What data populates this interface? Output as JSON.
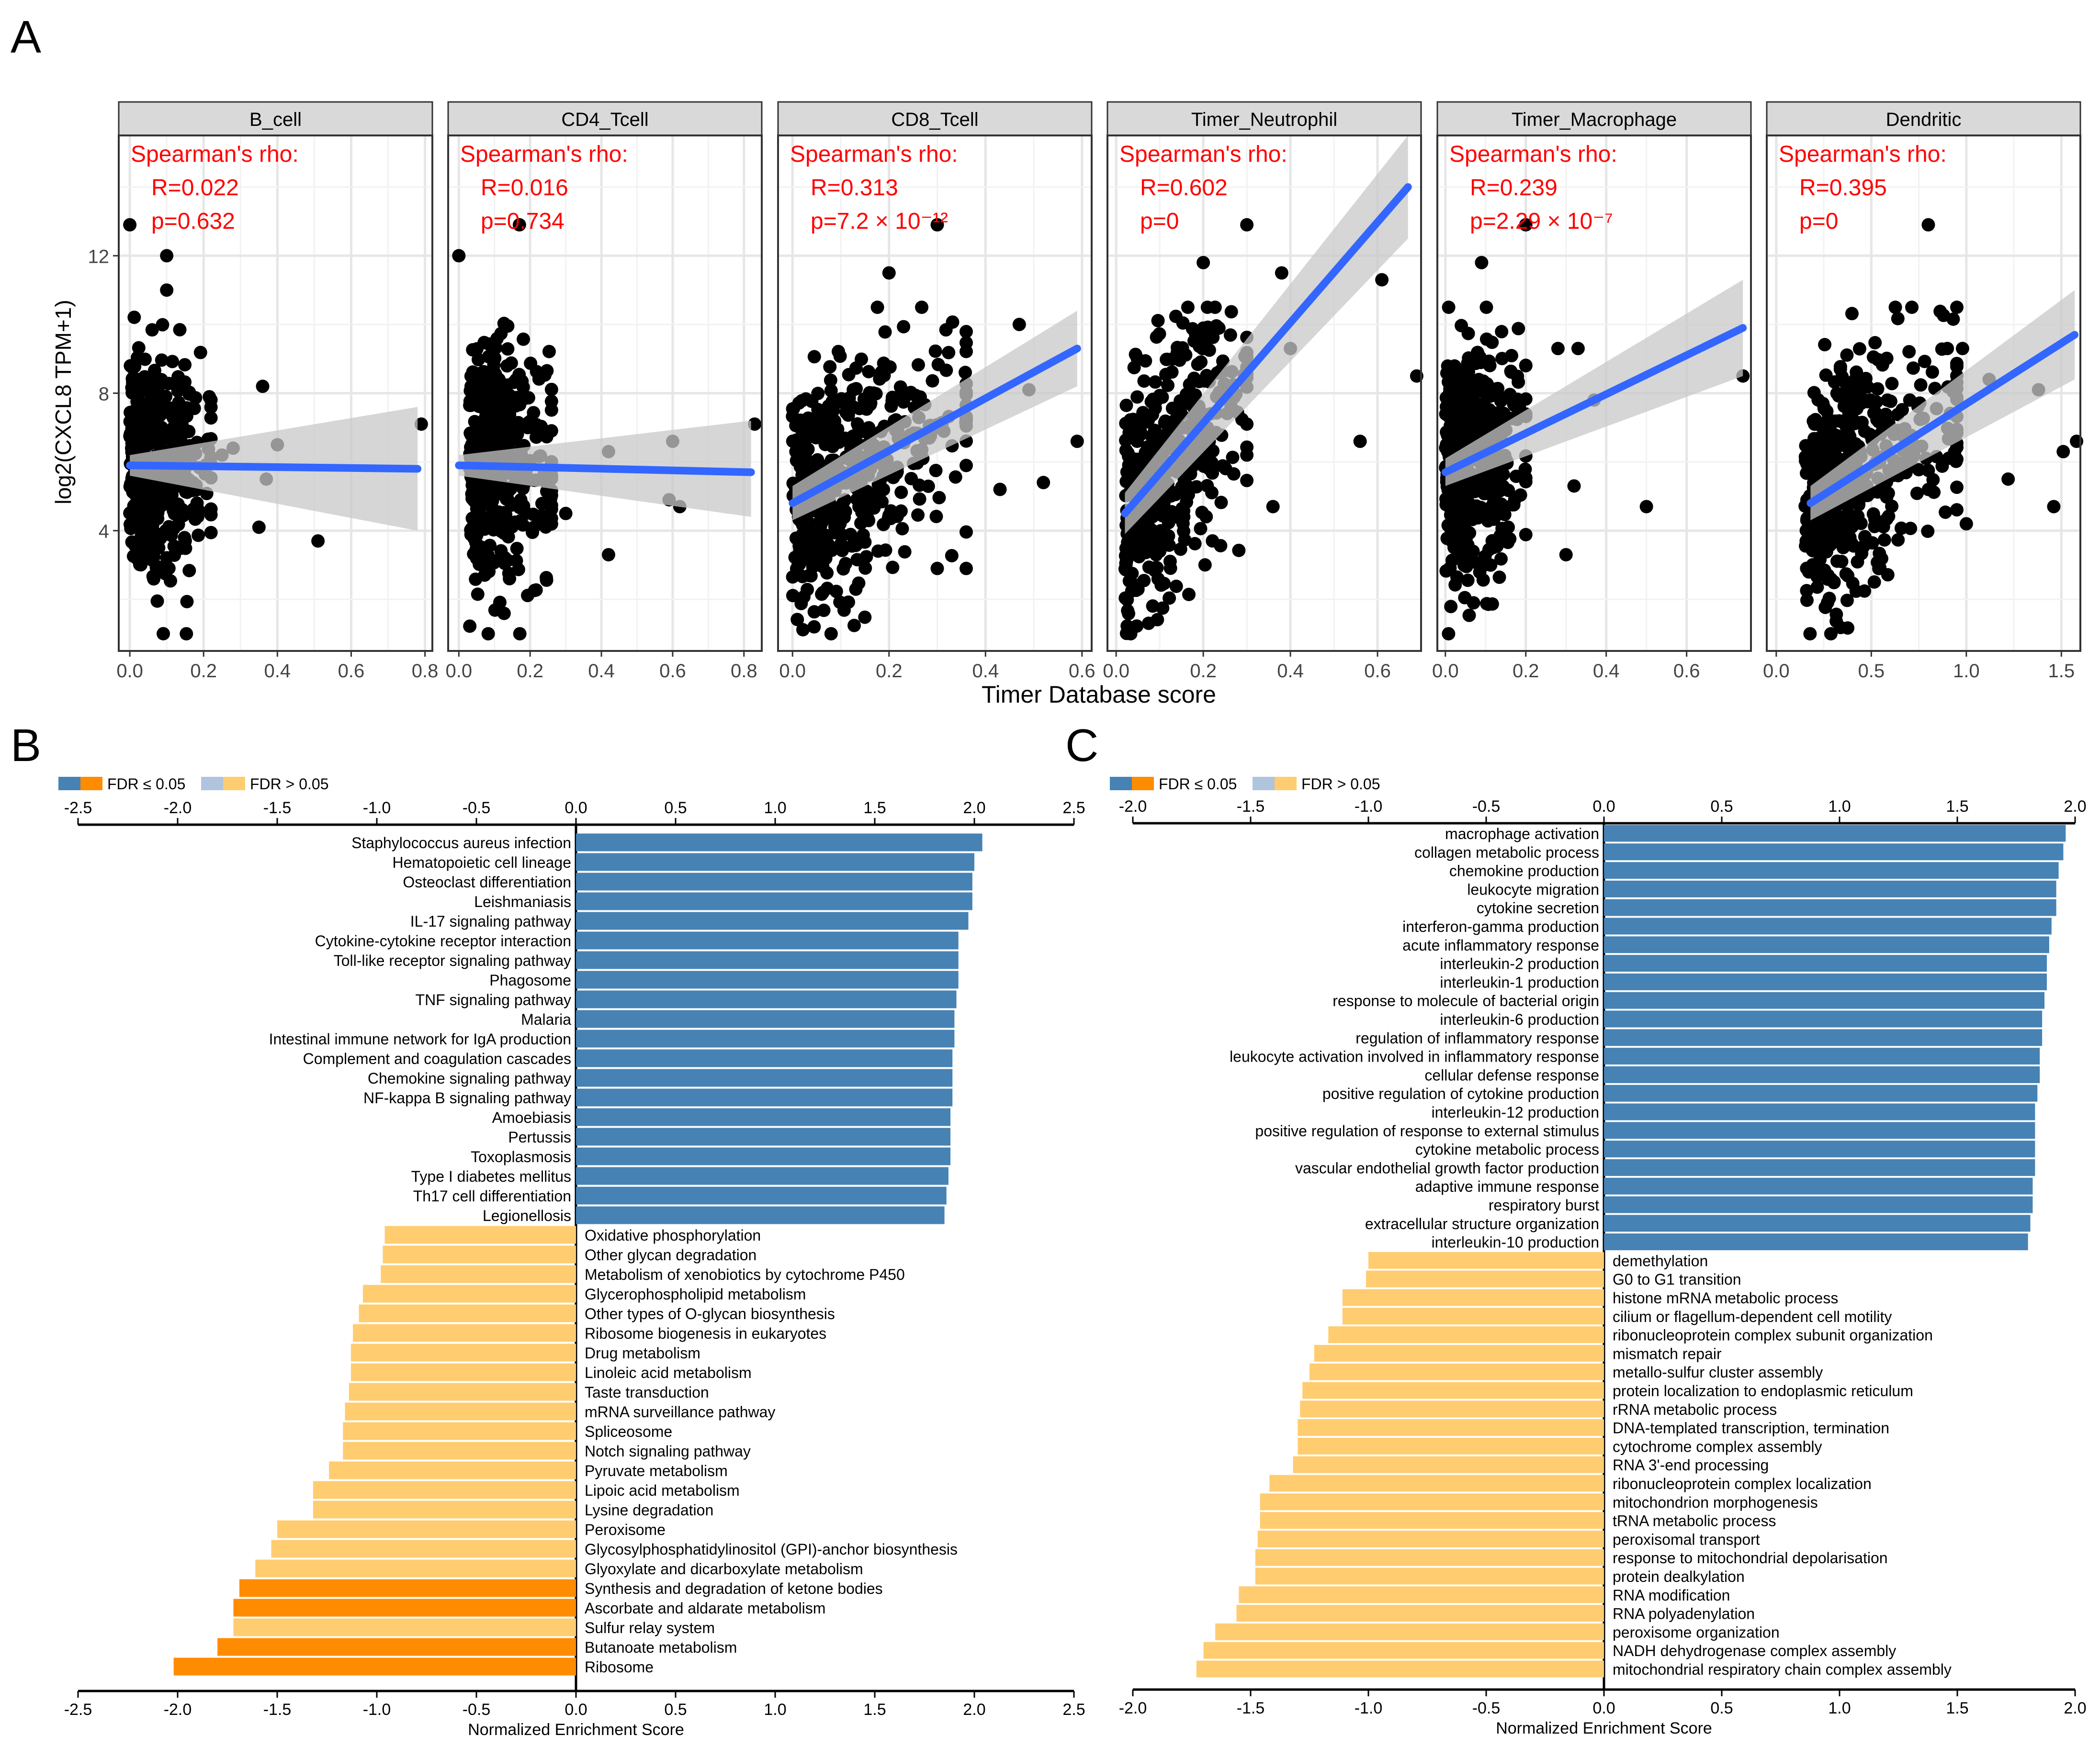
{
  "panel_labels": {
    "A": "A",
    "B": "B",
    "C": "C"
  },
  "colors": {
    "positive": "#4682b4",
    "negative_sig": "#ff8c00",
    "negative_nonsig": "#ffcc70",
    "positive_nonsig": "#b0c4de",
    "fit_line": "#3366ff",
    "ci_band": "#c8c8c8",
    "stat_text": "#ff0000",
    "strip": "#d9d9d9"
  },
  "panel_A": {
    "ylabel": "log2(CXCL8 TPM+1)",
    "xlabel": "Timer Database score",
    "stat_title": "Spearman's rho:",
    "yticks": [
      4,
      8,
      12
    ],
    "ylim": [
      0.5,
      15.5
    ]
  },
  "legend": {
    "sig": "FDR ≤ 0.05",
    "nonsig": "FDR > 0.05"
  },
  "chart_data": [
    {
      "type": "scatter",
      "title": "B_cell",
      "R": "R=0.022",
      "p": "p=0.632",
      "xlim": [
        -0.03,
        0.82
      ],
      "xticks": [
        "0.0",
        "0.2",
        "0.4",
        "0.6",
        "0.8"
      ],
      "xtick_values": [
        0.0,
        0.2,
        0.4,
        0.6,
        0.8
      ],
      "fit": {
        "x": [
          0.0,
          0.78
        ],
        "y": [
          5.9,
          5.8
        ]
      },
      "ci": {
        "x": [
          0.0,
          0.78
        ],
        "lower": [
          5.6,
          4.0
        ],
        "upper": [
          6.2,
          7.6
        ]
      },
      "cloud": {
        "xmin": 0.0,
        "xmax": 0.22,
        "ymin": 1.0,
        "ymax": 11.5,
        "n": 420
      },
      "outliers": [
        [
          0.0,
          12.9
        ],
        [
          0.1,
          12.0
        ],
        [
          0.1,
          11.0
        ],
        [
          0.36,
          8.2
        ],
        [
          0.4,
          6.5
        ],
        [
          0.28,
          6.4
        ],
        [
          0.37,
          5.5
        ],
        [
          0.35,
          4.1
        ],
        [
          0.51,
          3.7
        ],
        [
          0.79,
          7.1
        ],
        [
          0.25,
          6.2
        ]
      ]
    },
    {
      "type": "scatter",
      "title": "CD4_Tcell",
      "R": "R=0.016",
      "p": "p=0.734",
      "xlim": [
        -0.03,
        0.85
      ],
      "xticks": [
        "0.0",
        "0.2",
        "0.4",
        "0.6",
        "0.8"
      ],
      "xtick_values": [
        0.0,
        0.2,
        0.4,
        0.6,
        0.8
      ],
      "fit": {
        "x": [
          0.0,
          0.82
        ],
        "y": [
          5.9,
          5.7
        ]
      },
      "ci": {
        "x": [
          0.0,
          0.82
        ],
        "lower": [
          5.6,
          4.4
        ],
        "upper": [
          6.2,
          7.2
        ]
      },
      "cloud": {
        "xmin": 0.03,
        "xmax": 0.26,
        "ymin": 1.0,
        "ymax": 11.0,
        "n": 420
      },
      "outliers": [
        [
          0.0,
          12.0
        ],
        [
          0.17,
          12.9
        ],
        [
          0.42,
          6.3
        ],
        [
          0.42,
          3.3
        ],
        [
          0.6,
          6.6
        ],
        [
          0.59,
          4.9
        ],
        [
          0.62,
          4.7
        ],
        [
          0.83,
          7.1
        ],
        [
          0.3,
          4.5
        ]
      ]
    },
    {
      "type": "scatter",
      "title": "CD8_Tcell",
      "R": "R=0.313",
      "p": "p=7.2 × 10⁻¹²",
      "xlim": [
        -0.03,
        0.62
      ],
      "xticks": [
        "0.0",
        "0.2",
        "0.4",
        "0.6"
      ],
      "xtick_values": [
        0.0,
        0.2,
        0.4,
        0.6
      ],
      "fit": {
        "x": [
          0.0,
          0.59
        ],
        "y": [
          4.8,
          9.3
        ]
      },
      "ci": {
        "x": [
          0.0,
          0.59
        ],
        "lower": [
          4.3,
          8.2
        ],
        "upper": [
          5.3,
          10.4
        ]
      },
      "cloud": {
        "xmin": 0.0,
        "xmax": 0.36,
        "ymin": 1.0,
        "ymax": 10.5,
        "n": 460
      },
      "outliers": [
        [
          0.3,
          12.9
        ],
        [
          0.2,
          11.5
        ],
        [
          0.47,
          10.0
        ],
        [
          0.49,
          8.1
        ],
        [
          0.59,
          6.6
        ],
        [
          0.52,
          5.4
        ],
        [
          0.43,
          5.2
        ],
        [
          0.36,
          2.9
        ],
        [
          0.3,
          2.9
        ],
        [
          0.08,
          1.0
        ]
      ]
    },
    {
      "type": "scatter",
      "title": "Timer_Neutrophil",
      "R": "R=0.602",
      "p": "p=0",
      "xlim": [
        -0.02,
        0.7
      ],
      "xticks": [
        "0.0",
        "0.2",
        "0.4",
        "0.6"
      ],
      "xtick_values": [
        0.0,
        0.2,
        0.4,
        0.6
      ],
      "fit": {
        "x": [
          0.02,
          0.67
        ],
        "y": [
          4.5,
          14.0
        ]
      },
      "ci": {
        "x": [
          0.02,
          0.67
        ],
        "lower": [
          3.9,
          12.5
        ],
        "upper": [
          5.1,
          15.5
        ]
      },
      "cloud": {
        "xmin": 0.02,
        "xmax": 0.3,
        "ymin": 1.0,
        "ymax": 10.5,
        "n": 460
      },
      "outliers": [
        [
          0.3,
          12.9
        ],
        [
          0.2,
          11.8
        ],
        [
          0.38,
          11.5
        ],
        [
          0.61,
          11.3
        ],
        [
          0.69,
          8.5
        ],
        [
          0.4,
          9.3
        ],
        [
          0.56,
          6.6
        ],
        [
          0.36,
          4.7
        ],
        [
          0.3,
          6.2
        ]
      ]
    },
    {
      "type": "scatter",
      "title": "Timer_Macrophage",
      "R": "R=0.239",
      "p": "p=2.29 × 10⁻⁷",
      "xlim": [
        -0.02,
        0.76
      ],
      "xticks": [
        "0.0",
        "0.2",
        "0.4",
        "0.6"
      ],
      "xtick_values": [
        0.0,
        0.2,
        0.4,
        0.6
      ],
      "fit": {
        "x": [
          0.0,
          0.74
        ],
        "y": [
          5.7,
          9.9
        ]
      },
      "ci": {
        "x": [
          0.0,
          0.74
        ],
        "lower": [
          5.3,
          8.5
        ],
        "upper": [
          6.1,
          11.3
        ]
      },
      "cloud": {
        "xmin": 0.0,
        "xmax": 0.2,
        "ymin": 1.0,
        "ymax": 10.5,
        "n": 460
      },
      "outliers": [
        [
          0.2,
          12.9
        ],
        [
          0.09,
          11.8
        ],
        [
          0.28,
          9.3
        ],
        [
          0.33,
          9.3
        ],
        [
          0.37,
          7.8
        ],
        [
          0.5,
          4.7
        ],
        [
          0.74,
          8.5
        ],
        [
          0.3,
          3.3
        ],
        [
          0.32,
          5.3
        ]
      ]
    },
    {
      "type": "scatter",
      "title": "Dendritic",
      "R": "R=0.395",
      "p": "p=0",
      "xlim": [
        -0.05,
        1.6
      ],
      "xticks": [
        "0.0",
        "0.5",
        "1.0",
        "1.5"
      ],
      "xtick_values": [
        0.0,
        0.5,
        1.0,
        1.5
      ],
      "fit": {
        "x": [
          0.18,
          1.57
        ],
        "y": [
          4.8,
          9.7
        ]
      },
      "ci": {
        "x": [
          0.18,
          1.57
        ],
        "lower": [
          4.3,
          8.4
        ],
        "upper": [
          5.3,
          11.0
        ]
      },
      "cloud": {
        "xmin": 0.15,
        "xmax": 0.95,
        "ymin": 1.0,
        "ymax": 10.5,
        "n": 460
      },
      "outliers": [
        [
          0.8,
          12.9
        ],
        [
          0.9,
          9.3
        ],
        [
          0.98,
          9.3
        ],
        [
          1.12,
          8.4
        ],
        [
          1.38,
          8.1
        ],
        [
          1.58,
          6.6
        ],
        [
          1.51,
          6.3
        ],
        [
          1.22,
          5.5
        ],
        [
          1.46,
          4.7
        ],
        [
          1.0,
          4.2
        ]
      ]
    },
    {
      "type": "bar",
      "title": "",
      "xlabel": "Normalized Enrichment Score",
      "xlim": [
        -2.5,
        2.5
      ],
      "xticks": [
        "-2.5",
        "-2.0",
        "-1.5",
        "-1.0",
        "-0.5",
        "0.0",
        "0.5",
        "1.0",
        "1.5",
        "2.0",
        "2.5"
      ],
      "xtick_values": [
        -2.5,
        -2.0,
        -1.5,
        -1.0,
        -0.5,
        0.0,
        0.5,
        1.0,
        1.5,
        2.0,
        2.5
      ],
      "categories": [
        "Staphylococcus aureus infection",
        "Hematopoietic cell lineage",
        "Osteoclast differentiation",
        "Leishmaniasis",
        "IL-17 signaling pathway",
        "Cytokine-cytokine receptor interaction",
        "Toll-like receptor signaling pathway",
        "Phagosome",
        "TNF signaling pathway",
        "Malaria",
        "Intestinal immune network for IgA production",
        "Complement and coagulation cascades",
        "Chemokine signaling pathway",
        "NF-kappa B signaling pathway",
        "Amoebiasis",
        "Pertussis",
        "Toxoplasmosis",
        "Type I diabetes mellitus",
        "Th17 cell differentiation",
        "Legionellosis",
        "Oxidative phosphorylation",
        "Other glycan degradation",
        "Metabolism of xenobiotics by cytochrome P450",
        "Glycerophospholipid metabolism",
        "Other types of O-glycan biosynthesis",
        "Ribosome biogenesis in eukaryotes",
        "Drug metabolism",
        "Linoleic acid metabolism",
        "Taste transduction",
        "mRNA surveillance pathway",
        "Spliceosome",
        "Notch signaling pathway",
        "Pyruvate metabolism",
        "Lipoic acid metabolism",
        "Lysine degradation",
        "Peroxisome",
        "Glycosylphosphatidylinositol (GPI)-anchor biosynthesis",
        "Glyoxylate and dicarboxylate metabolism",
        "Synthesis and degradation of ketone bodies",
        "Ascorbate and aldarate metabolism",
        "Sulfur relay system",
        "Butanoate metabolism",
        "Ribosome"
      ],
      "values": [
        2.04,
        2.0,
        1.99,
        1.99,
        1.97,
        1.92,
        1.92,
        1.92,
        1.91,
        1.9,
        1.9,
        1.89,
        1.89,
        1.89,
        1.88,
        1.88,
        1.88,
        1.87,
        1.86,
        1.85,
        -0.96,
        -0.97,
        -0.98,
        -1.07,
        -1.09,
        -1.12,
        -1.13,
        -1.13,
        -1.14,
        -1.16,
        -1.17,
        -1.17,
        -1.24,
        -1.32,
        -1.32,
        -1.5,
        -1.53,
        -1.61,
        -1.69,
        -1.72,
        -1.72,
        -1.8,
        -2.02
      ],
      "significant": [
        true,
        true,
        true,
        true,
        true,
        true,
        true,
        true,
        true,
        true,
        true,
        true,
        true,
        true,
        true,
        true,
        true,
        true,
        true,
        true,
        false,
        false,
        false,
        false,
        false,
        false,
        false,
        false,
        false,
        false,
        false,
        false,
        false,
        false,
        false,
        false,
        false,
        false,
        true,
        true,
        false,
        true,
        true
      ]
    },
    {
      "type": "bar",
      "title": "",
      "xlabel": "Normalized Enrichment Score",
      "xlim": [
        -2.0,
        2.0
      ],
      "xticks": [
        "-2.0",
        "-1.5",
        "-1.0",
        "-0.5",
        "0.0",
        "0.5",
        "1.0",
        "1.5",
        "2.0"
      ],
      "xtick_values": [
        -2.0,
        -1.5,
        -1.0,
        -0.5,
        0.0,
        0.5,
        1.0,
        1.5,
        2.0
      ],
      "categories": [
        "macrophage activation",
        "collagen metabolic process",
        "chemokine production",
        "leukocyte migration",
        "cytokine secretion",
        "interferon-gamma production",
        "acute inflammatory response",
        "interleukin-2 production",
        "interleukin-1 production",
        "response to molecule of bacterial origin",
        "interleukin-6 production",
        "regulation of inflammatory response",
        "leukocyte activation involved in inflammatory response",
        "cellular defense response",
        "positive regulation of cytokine production",
        "interleukin-12 production",
        "positive regulation of response to external stimulus",
        "cytokine metabolic process",
        "vascular endothelial growth factor production",
        "adaptive immune response",
        "respiratory burst",
        "extracellular structure organization",
        "interleukin-10 production",
        "demethylation",
        "G0 to G1 transition",
        "histone mRNA metabolic process",
        "cilium or flagellum-dependent cell motility",
        "ribonucleoprotein complex subunit organization",
        "mismatch repair",
        "metallo-sulfur cluster assembly",
        "protein localization to endoplasmic reticulum",
        "rRNA metabolic process",
        "DNA-templated transcription, termination",
        "cytochrome complex assembly",
        "RNA 3'-end processing",
        "ribonucleoprotein complex localization",
        "mitochondrion morphogenesis",
        "tRNA metabolic process",
        "peroxisomal transport",
        "response to mitochondrial depolarisation",
        "protein dealkylation",
        "RNA modification",
        "RNA polyadenylation",
        "peroxisome organization",
        "NADH dehydrogenase complex assembly",
        "mitochondrial respiratory chain complex assembly"
      ],
      "values": [
        1.96,
        1.95,
        1.93,
        1.92,
        1.92,
        1.9,
        1.89,
        1.88,
        1.88,
        1.87,
        1.86,
        1.86,
        1.85,
        1.85,
        1.84,
        1.83,
        1.83,
        1.83,
        1.83,
        1.82,
        1.82,
        1.81,
        1.8,
        -1.0,
        -1.01,
        -1.11,
        -1.11,
        -1.17,
        -1.23,
        -1.25,
        -1.28,
        -1.29,
        -1.3,
        -1.3,
        -1.32,
        -1.42,
        -1.46,
        -1.46,
        -1.47,
        -1.48,
        -1.48,
        -1.55,
        -1.56,
        -1.65,
        -1.7,
        -1.73
      ],
      "significant": [
        true,
        true,
        true,
        true,
        true,
        true,
        true,
        true,
        true,
        true,
        true,
        true,
        true,
        true,
        true,
        true,
        true,
        true,
        true,
        true,
        true,
        true,
        true,
        false,
        false,
        false,
        false,
        false,
        false,
        false,
        false,
        false,
        false,
        false,
        false,
        false,
        false,
        false,
        false,
        false,
        false,
        false,
        false,
        false,
        false,
        false
      ]
    }
  ]
}
